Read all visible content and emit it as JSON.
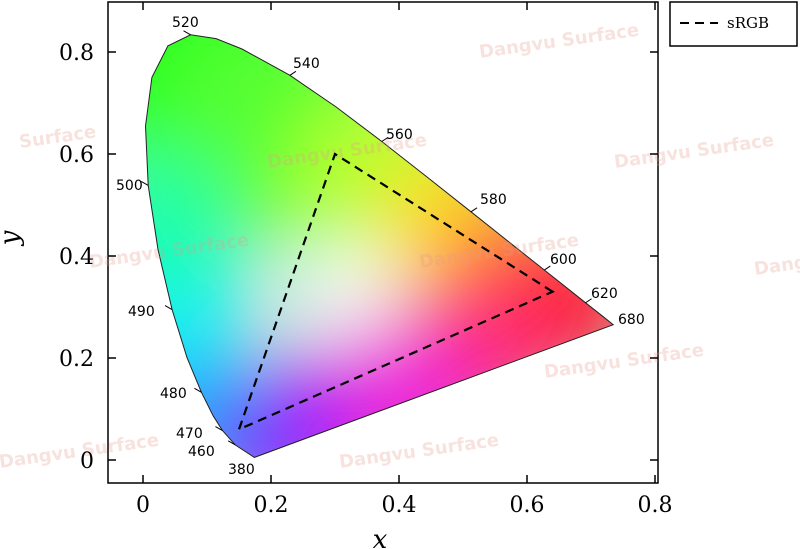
{
  "chart_data": {
    "type": "line",
    "title": "",
    "xlabel": "x",
    "ylabel": "y",
    "xlim": [
      -0.05,
      0.8
    ],
    "ylim": [
      -0.05,
      0.87
    ],
    "x_ticks": [
      0,
      0.2,
      0.4,
      0.6,
      0.8
    ],
    "x_tick_labels": [
      "0",
      "0.2",
      "0.4",
      "0.6",
      "0.8"
    ],
    "y_ticks": [
      0,
      0.2,
      0.4,
      0.6,
      0.8
    ],
    "y_tick_labels": [
      "0",
      "0.2",
      "0.4",
      "0.6",
      "0.8"
    ],
    "grid": false,
    "legend_position": "top-right",
    "spectral_locus": [
      {
        "nm": "380",
        "x": 0.1741,
        "y": 0.005
      },
      {
        "nm": "460",
        "x": 0.144,
        "y": 0.0297
      },
      {
        "nm": "470",
        "x": 0.1241,
        "y": 0.0578
      },
      {
        "nm": "475",
        "x": 0.1096,
        "y": 0.0868
      },
      {
        "nm": "480",
        "x": 0.0913,
        "y": 0.1327
      },
      {
        "nm": "485",
        "x": 0.0687,
        "y": 0.2007
      },
      {
        "nm": "490",
        "x": 0.0454,
        "y": 0.295
      },
      {
        "nm": "495",
        "x": 0.0235,
        "y": 0.4127
      },
      {
        "nm": "500",
        "x": 0.0082,
        "y": 0.5384
      },
      {
        "nm": "505",
        "x": 0.0039,
        "y": 0.6548
      },
      {
        "nm": "510",
        "x": 0.0139,
        "y": 0.7502
      },
      {
        "nm": "515",
        "x": 0.0389,
        "y": 0.812
      },
      {
        "nm": "520",
        "x": 0.0743,
        "y": 0.8338
      },
      {
        "nm": "525",
        "x": 0.1142,
        "y": 0.8262
      },
      {
        "nm": "530",
        "x": 0.1547,
        "y": 0.8059
      },
      {
        "nm": "540",
        "x": 0.2296,
        "y": 0.7543
      },
      {
        "nm": "550",
        "x": 0.3016,
        "y": 0.6923
      },
      {
        "nm": "560",
        "x": 0.3731,
        "y": 0.6245
      },
      {
        "nm": "570",
        "x": 0.4441,
        "y": 0.5547
      },
      {
        "nm": "580",
        "x": 0.5125,
        "y": 0.4866
      },
      {
        "nm": "590",
        "x": 0.5752,
        "y": 0.4242
      },
      {
        "nm": "600",
        "x": 0.627,
        "y": 0.3725
      },
      {
        "nm": "610",
        "x": 0.6658,
        "y": 0.334
      },
      {
        "nm": "620",
        "x": 0.6915,
        "y": 0.3083
      },
      {
        "nm": "640",
        "x": 0.719,
        "y": 0.2809
      },
      {
        "nm": "680",
        "x": 0.7347,
        "y": 0.2653
      }
    ],
    "wavelength_labels": [
      "520",
      "540",
      "560",
      "580",
      "600",
      "620",
      "680",
      "500",
      "490",
      "480",
      "470",
      "460",
      "380"
    ],
    "series": [
      {
        "name": "sRGB",
        "style": "dashed",
        "color": "#000000",
        "points": [
          {
            "x": 0.64,
            "y": 0.33
          },
          {
            "x": 0.3,
            "y": 0.6
          },
          {
            "x": 0.15,
            "y": 0.06
          }
        ]
      }
    ],
    "white_point": {
      "x": 0.3127,
      "y": 0.329
    }
  },
  "watermarks": [
    "Dangvu Surface",
    "Dangvu Surface",
    "Dangvu Surface",
    "Dangvu Surface",
    "Dangvu Surface",
    "Dangvu Surface",
    "Dangvu Surface",
    "Dangvu Surface",
    "Dangvu Surface",
    "Surface"
  ]
}
